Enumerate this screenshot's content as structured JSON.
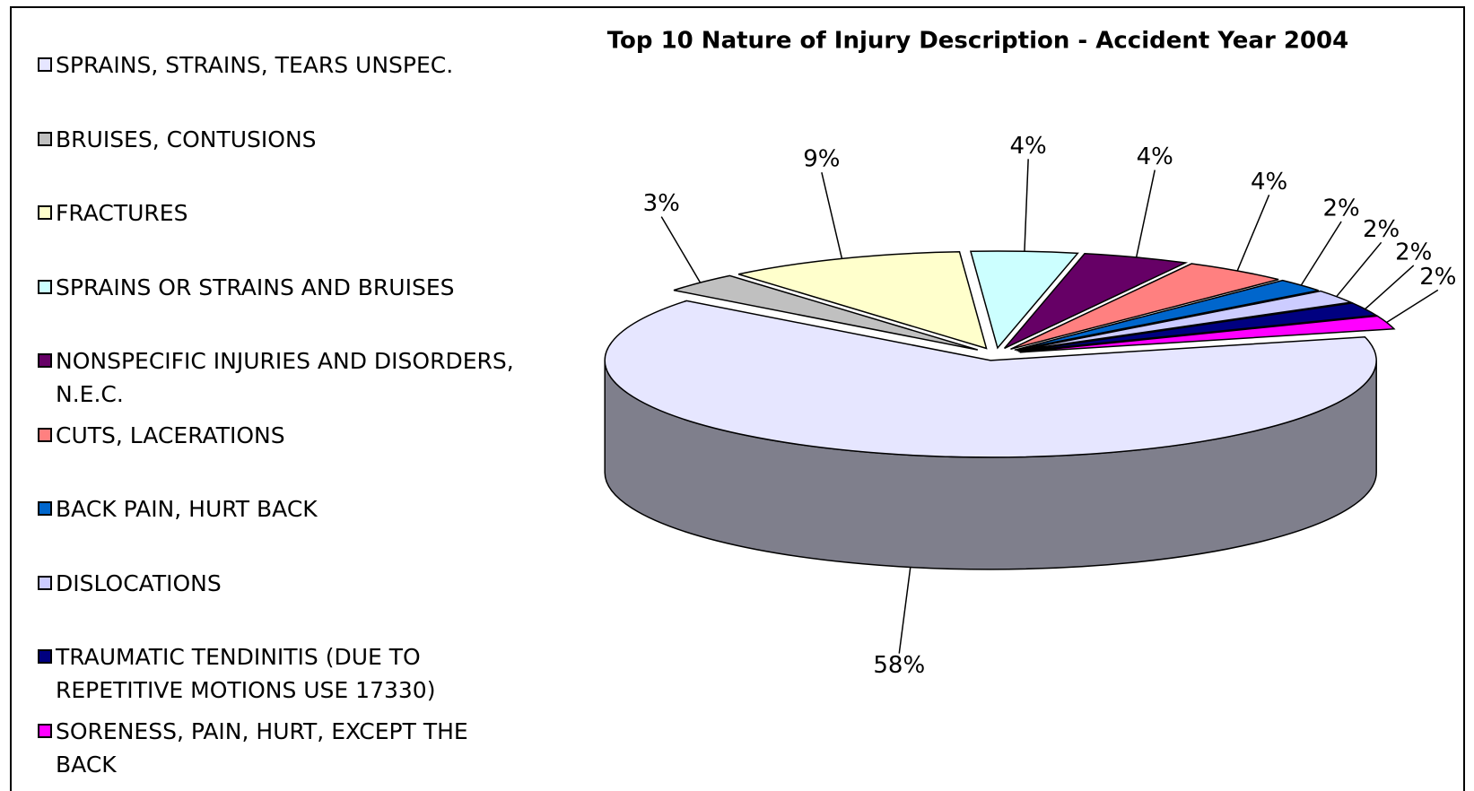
{
  "chart_data": {
    "type": "pie3d",
    "title": "Top 10  Nature of Injury Description - Accident Year 2004",
    "categories": [
      "SPRAINS, STRAINS, TEARS UNSPEC.",
      "BRUISES, CONTUSIONS",
      "FRACTURES",
      "SPRAINS OR STRAINS AND BRUISES",
      "NONSPECIFIC INJURIES AND DISORDERS, N.E.C.",
      "CUTS, LACERATIONS",
      "BACK PAIN, HURT BACK",
      "DISLOCATIONS",
      "TRAUMATIC TENDINITIS (DUE TO REPETITIVE MOTIONS USE 17330)",
      "SORENESS, PAIN, HURT, EXCEPT THE BACK"
    ],
    "values": [
      58,
      3,
      9,
      4,
      4,
      4,
      2,
      2,
      2,
      2
    ],
    "value_labels": [
      "58%",
      "3%",
      "9%",
      "4%",
      "4%",
      "4%",
      "2%",
      "2%",
      "2%",
      "2%"
    ],
    "colors": [
      "#e6e6ff",
      "#c0c0c0",
      "#ffffcc",
      "#ccffff",
      "#660066",
      "#ff8080",
      "#0066cc",
      "#ccccff",
      "#000080",
      "#ff00ff"
    ],
    "legend": "left"
  }
}
